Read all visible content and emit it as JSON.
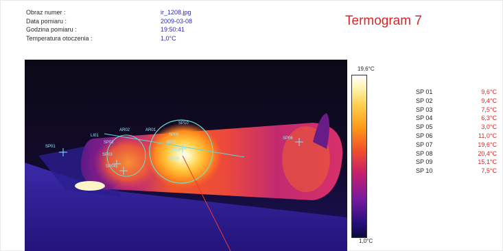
{
  "meta": {
    "rows": [
      {
        "label": "Obraz numer :",
        "value": "ir_1208.jpg"
      },
      {
        "label": "Data pomiaru :",
        "value": "2009-03-08"
      },
      {
        "label": "Godzina pomiaru :",
        "value": "19:50:41"
      },
      {
        "label": "Temperatura otoczenia :",
        "value": "1,0°C"
      }
    ]
  },
  "title": "Termogram 7",
  "scale": {
    "max": "19,6°C",
    "min": "1,0°C"
  },
  "overlay_labels": [
    "SP01",
    "SP02",
    "SP03",
    "SP04",
    "SP05",
    "SP06",
    "SP07",
    "SP08",
    "SP09",
    "SP10",
    "LI01",
    "AR01",
    "AR02"
  ],
  "spots": [
    {
      "name": "SP 01",
      "value": "9,6°C"
    },
    {
      "name": "SP 02",
      "value": "9,4°C"
    },
    {
      "name": "SP 03",
      "value": "7,5°C"
    },
    {
      "name": "SP 04",
      "value": "6,3°C"
    },
    {
      "name": "SP 05",
      "value": "3,0°C"
    },
    {
      "name": "SP 06",
      "value": "11,0°C"
    },
    {
      "name": "SP 07",
      "value": "19,6°C"
    },
    {
      "name": "SP 08",
      "value": "20,4°C"
    },
    {
      "name": "SP 09",
      "value": "15,1°C"
    },
    {
      "name": "SP 10",
      "value": "7,5°C"
    }
  ]
}
